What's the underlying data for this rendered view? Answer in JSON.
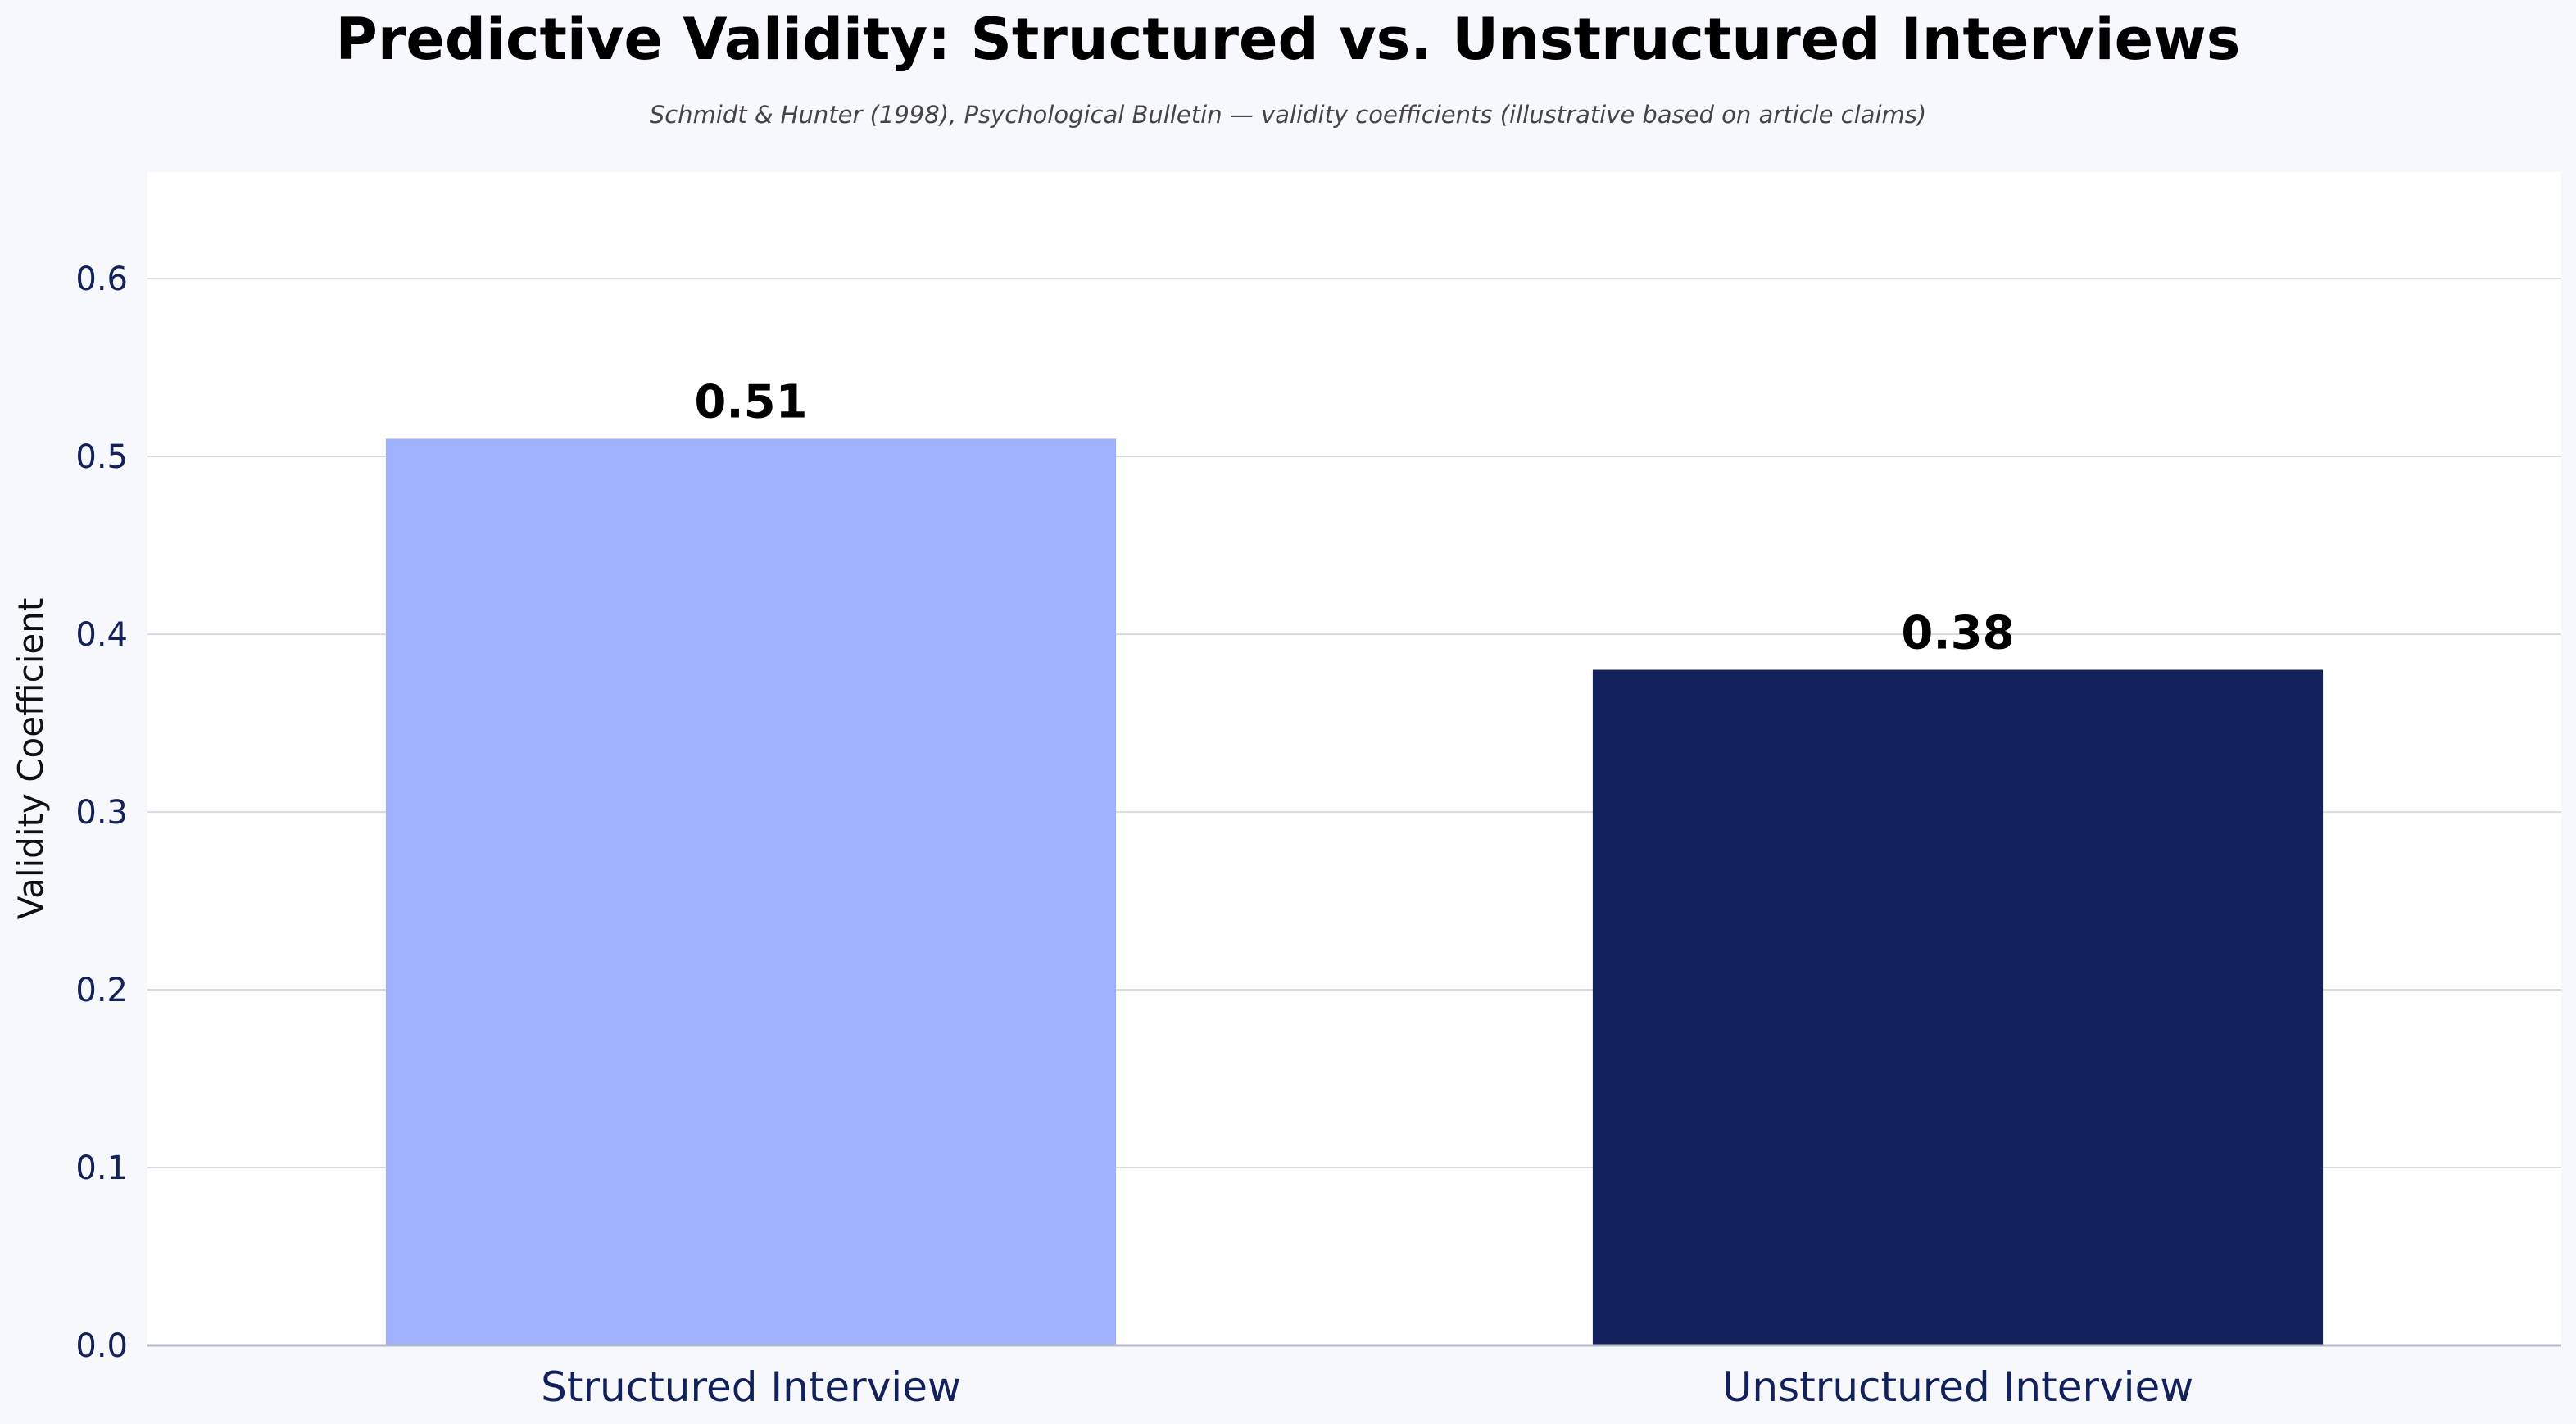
{
  "chart_data": {
    "type": "bar",
    "title": "Predictive Validity: Structured vs. Unstructured Interviews",
    "subtitle": "Schmidt & Hunter (1998), Psychological Bulletin — validity coefficients (illustrative based on article claims)",
    "xlabel": "",
    "ylabel": "Validity Coefficient",
    "categories": [
      "Structured Interview",
      "Unstructured Interview"
    ],
    "values": [
      0.51,
      0.38
    ],
    "value_labels": [
      "0.51",
      "0.38"
    ],
    "bar_colors": [
      "#9fb0fd",
      "#13225c"
    ],
    "ylim": [
      0,
      0.66
    ],
    "yticks": [
      0.0,
      0.1,
      0.2,
      0.3,
      0.4,
      0.5,
      0.6
    ],
    "ytick_labels": [
      "0.0",
      "0.1",
      "0.2",
      "0.3",
      "0.4",
      "0.5",
      "0.6"
    ],
    "grid": "horizontal",
    "legend": "none",
    "plot_background": "#ffffff",
    "page_background": "#f7f8fc"
  }
}
